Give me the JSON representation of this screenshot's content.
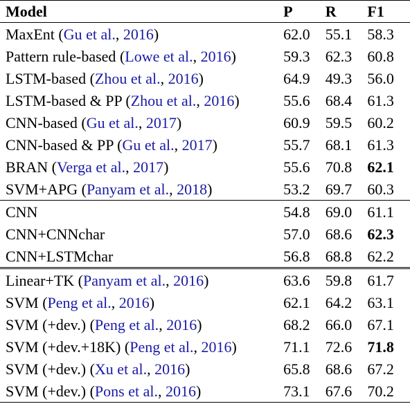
{
  "table": {
    "headers": {
      "model": "Model",
      "p": "P",
      "r": "R",
      "f1": "F1"
    },
    "groups": [
      {
        "rows": [
          {
            "method": "MaxEnt",
            "cite_open": " (",
            "cite_author": "Gu et al.",
            "cite_sep": ", ",
            "cite_year": "2016",
            "cite_close": ")",
            "p": "62.0",
            "r": "55.1",
            "f1": "58.3",
            "f1_bold": false
          },
          {
            "method": "Pattern rule-based",
            "cite_open": " (",
            "cite_author": "Lowe et al.",
            "cite_sep": ", ",
            "cite_year": "2016",
            "cite_close": ")",
            "p": "59.3",
            "r": "62.3",
            "f1": "60.8",
            "f1_bold": false
          },
          {
            "method": "LSTM-based",
            "cite_open": " (",
            "cite_author": "Zhou et al.",
            "cite_sep": ", ",
            "cite_year": "2016",
            "cite_close": ")",
            "p": "64.9",
            "r": "49.3",
            "f1": "56.0",
            "f1_bold": false
          },
          {
            "method": "LSTM-based & PP",
            "cite_open": " (",
            "cite_author": "Zhou et al.",
            "cite_sep": ", ",
            "cite_year": "2016",
            "cite_close": ")",
            "p": "55.6",
            "r": "68.4",
            "f1": "61.3",
            "f1_bold": false
          },
          {
            "method": "CNN-based",
            "cite_open": " (",
            "cite_author": "Gu et al.",
            "cite_sep": ", ",
            "cite_year": "2017",
            "cite_close": ")",
            "p": "60.9",
            "r": "59.5",
            "f1": "60.2",
            "f1_bold": false
          },
          {
            "method": "CNN-based & PP",
            "cite_open": " (",
            "cite_author": "Gu et al.",
            "cite_sep": ", ",
            "cite_year": "2017",
            "cite_close": ")",
            "p": "55.7",
            "r": "68.1",
            "f1": "61.3",
            "f1_bold": false
          },
          {
            "method": "BRAN",
            "cite_open": " (",
            "cite_author": "Verga et al.",
            "cite_sep": ", ",
            "cite_year": "2017",
            "cite_close": ")",
            "p": "55.6",
            "r": "70.8",
            "f1": "62.1",
            "f1_bold": true
          },
          {
            "method": "SVM+APG",
            "cite_open": " (",
            "cite_author": "Panyam et al.",
            "cite_sep": ", ",
            "cite_year": "2018",
            "cite_close": ")",
            "p": "53.2",
            "r": "69.7",
            "f1": "60.3",
            "f1_bold": false
          }
        ]
      },
      {
        "rows": [
          {
            "method": "CNN",
            "p": "54.8",
            "r": "69.0",
            "f1": "61.1",
            "f1_bold": false
          },
          {
            "method": "CNN+CNNchar",
            "p": "57.0",
            "r": "68.6",
            "f1": "62.3",
            "f1_bold": true
          },
          {
            "method": "CNN+LSTMchar",
            "p": "56.8",
            "r": "68.8",
            "f1": "62.2",
            "f1_bold": false
          }
        ]
      },
      {
        "rows": [
          {
            "method": "Linear+TK",
            "cite_open": " (",
            "cite_author": "Panyam et al.",
            "cite_sep": ", ",
            "cite_year": "2016",
            "cite_close": ")",
            "p": "63.6",
            "r": "59.8",
            "f1": "61.7",
            "f1_bold": false
          },
          {
            "method": "SVM",
            "cite_open": " (",
            "cite_author": "Peng et al.",
            "cite_sep": ", ",
            "cite_year": "2016",
            "cite_close": ")",
            "p": "62.1",
            "r": "64.2",
            "f1": "63.1",
            "f1_bold": false
          },
          {
            "method": "SVM (+dev.)",
            "cite_open": " (",
            "cite_author": "Peng et al.",
            "cite_sep": ", ",
            "cite_year": "2016",
            "cite_close": ")",
            "p": "68.2",
            "r": "66.0",
            "f1": "67.1",
            "f1_bold": false
          },
          {
            "method": "SVM (+dev.+18K)",
            "cite_open": " (",
            "cite_author": "Peng et al.",
            "cite_sep": ", ",
            "cite_year": "2016",
            "cite_close": ")",
            "p": "71.1",
            "r": "72.6",
            "f1": "71.8",
            "f1_bold": true
          },
          {
            "method": "SVM (+dev.)",
            "cite_open": " (",
            "cite_author": "Xu et al.",
            "cite_sep": ", ",
            "cite_year": "2016",
            "cite_close": ")",
            "p": "65.8",
            "r": "68.6",
            "f1": "67.2",
            "f1_bold": false
          },
          {
            "method": "SVM (+dev.)",
            "cite_open": " (",
            "cite_author": "Pons et al.",
            "cite_sep": ", ",
            "cite_year": "2016",
            "cite_close": ")",
            "p": "73.1",
            "r": "67.6",
            "f1": "70.2",
            "f1_bold": false
          }
        ]
      }
    ]
  }
}
